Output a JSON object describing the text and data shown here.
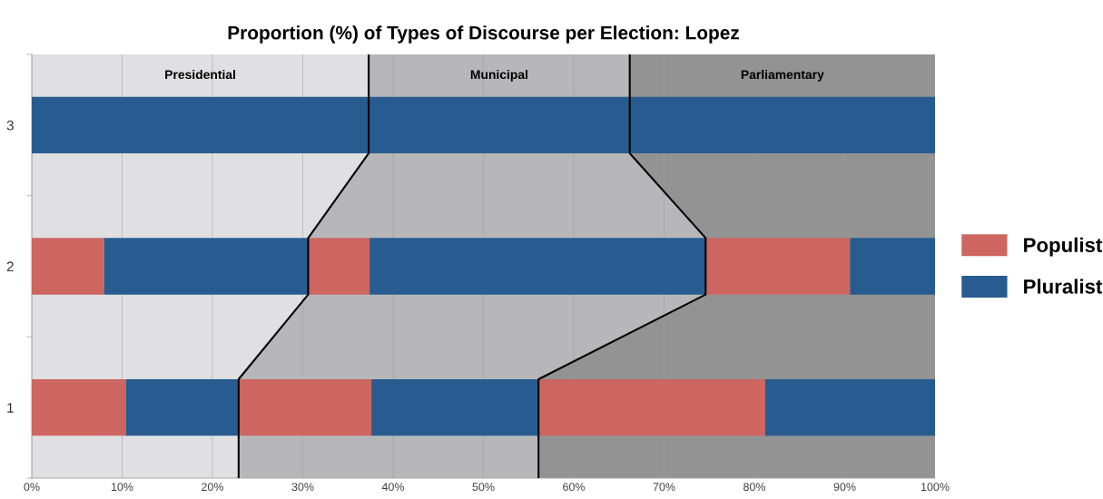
{
  "chart_data": {
    "type": "bar",
    "orientation": "horizontal",
    "stacked": true,
    "title": "Proportion (%) of Types of Discourse per Election: Lopez",
    "categories": [
      "3",
      "2",
      "1"
    ],
    "series": [
      {
        "name": "Populist",
        "color": "#cd6660",
        "values": [
          0,
          8.0,
          10.4
        ]
      },
      {
        "name": "Pluralist",
        "color": "#285c90",
        "values": [
          37.3,
          22.6,
          12.5
        ]
      },
      {
        "color": "#cd6660",
        "values": [
          0,
          6.8,
          14.7
        ]
      },
      {
        "color": "#285c90",
        "values": [
          28.9,
          37.2,
          18.5
        ]
      },
      {
        "color": "#cd6660",
        "values": [
          0,
          16.0,
          25.1
        ]
      },
      {
        "color": "#285c90",
        "values": [
          33.8,
          9.4,
          18.8
        ]
      }
    ],
    "annotations": [
      "Presidential",
      "Municipal",
      "Parliamentary"
    ],
    "xlim": [
      0,
      100
    ],
    "xticks": [
      {
        "value": 0,
        "label": "0%"
      },
      {
        "value": 10,
        "label": "10%"
      },
      {
        "value": 20,
        "label": "20%"
      },
      {
        "value": 30,
        "label": "30%"
      },
      {
        "value": 40,
        "label": "40%"
      },
      {
        "value": 50,
        "label": "50%"
      },
      {
        "value": 60,
        "label": "60%"
      },
      {
        "value": 70,
        "label": "70%"
      },
      {
        "value": 80,
        "label": "80%"
      },
      {
        "value": 90,
        "label": "90%"
      },
      {
        "value": 100,
        "label": "100%"
      }
    ],
    "grid": "x",
    "legend": "right"
  }
}
